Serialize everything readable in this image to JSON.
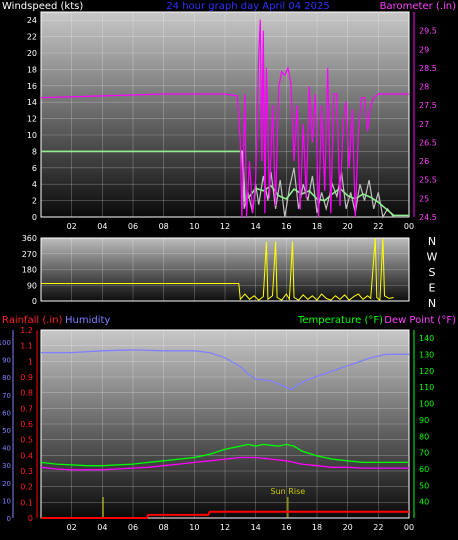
{
  "chart_data": [
    {
      "type": "line",
      "title": "24 hour graph day   April 04 2025",
      "ylabel": "Windspeed (kts)",
      "y2label": "Barometer (.in)",
      "x_ticks": [
        "02",
        "04",
        "06",
        "08",
        "10",
        "12",
        "14",
        "16",
        "18",
        "20",
        "22",
        "00"
      ],
      "ylim": [
        0,
        25
      ],
      "y_ticks": [
        0,
        2,
        4,
        6,
        8,
        10,
        12,
        14,
        16,
        18,
        20,
        22,
        24
      ],
      "y2lim": [
        24.5,
        30.0
      ],
      "y2_ticks": [
        "24.5",
        "25",
        "25.5",
        "26",
        "26.5",
        "27",
        "27.5",
        "28",
        "28.5",
        "29",
        "29.5"
      ],
      "colors": {
        "windspeed": "#c0c0c0",
        "wind_avg": "#90ee90",
        "barometer": "#ff00ff"
      },
      "series": [
        {
          "key": "windspeed",
          "color": "#c0c0c0",
          "points": [
            [
              0,
              8
            ],
            [
              13.1,
              8
            ],
            [
              13.25,
              1
            ],
            [
              13.5,
              3
            ],
            [
              13.8,
              0.5
            ],
            [
              14,
              4
            ],
            [
              14.2,
              1.5
            ],
            [
              14.5,
              5
            ],
            [
              14.8,
              2
            ],
            [
              15,
              5.5
            ],
            [
              15.3,
              1
            ],
            [
              15.6,
              4.5
            ],
            [
              15.9,
              0
            ],
            [
              16.2,
              3.5
            ],
            [
              16.5,
              6
            ],
            [
              16.8,
              1
            ],
            [
              17.1,
              4
            ],
            [
              17.4,
              2
            ],
            [
              17.7,
              5
            ],
            [
              18,
              0.5
            ],
            [
              18.3,
              3
            ],
            [
              18.6,
              1
            ],
            [
              19,
              4
            ],
            [
              19.3,
              2.5
            ],
            [
              19.6,
              5.5
            ],
            [
              19.9,
              1
            ],
            [
              20.2,
              3
            ],
            [
              20.5,
              0.5
            ],
            [
              20.8,
              4
            ],
            [
              21.1,
              2
            ],
            [
              21.4,
              4.5
            ],
            [
              21.7,
              1
            ],
            [
              22,
              3
            ],
            [
              22.3,
              0
            ],
            [
              22.6,
              1
            ],
            [
              23,
              0
            ],
            [
              24,
              0
            ]
          ]
        },
        {
          "key": "wind_avg",
          "color": "#90ee90",
          "points": [
            [
              0,
              8
            ],
            [
              13.15,
              8
            ],
            [
              13.3,
              2
            ],
            [
              13.6,
              2.5
            ],
            [
              14,
              3.5
            ],
            [
              14.5,
              3.2
            ],
            [
              15,
              3.8
            ],
            [
              15.5,
              2.6
            ],
            [
              16,
              2.2
            ],
            [
              16.5,
              3.4
            ],
            [
              17,
              2.8
            ],
            [
              17.5,
              3.2
            ],
            [
              18,
              2.2
            ],
            [
              18.5,
              2
            ],
            [
              19,
              2.8
            ],
            [
              19.5,
              3.5
            ],
            [
              20,
              2.6
            ],
            [
              20.5,
              2.2
            ],
            [
              21,
              2.8
            ],
            [
              21.5,
              2.4
            ],
            [
              22,
              1.8
            ],
            [
              22.5,
              1
            ],
            [
              23,
              0.2
            ],
            [
              24,
              0.2
            ]
          ]
        },
        {
          "key": "barometer",
          "color": "#ff00ff",
          "points": [
            [
              0,
              27.7
            ],
            [
              4,
              27.75
            ],
            [
              8,
              27.8
            ],
            [
              12,
              27.8
            ],
            [
              12.8,
              27.75
            ],
            [
              13.0,
              26.5
            ],
            [
              13.1,
              24.5
            ],
            [
              13.3,
              27.8
            ],
            [
              13.4,
              24.5
            ],
            [
              13.6,
              26.0
            ],
            [
              13.8,
              24.6
            ],
            [
              14.0,
              25.5
            ],
            [
              14.2,
              28.8
            ],
            [
              14.3,
              29.8
            ],
            [
              14.4,
              26.0
            ],
            [
              14.5,
              29.5
            ],
            [
              14.6,
              24.6
            ],
            [
              14.7,
              28.5
            ],
            [
              14.9,
              25.0
            ],
            [
              15.1,
              27.5
            ],
            [
              15.3,
              24.8
            ],
            [
              15.5,
              28.0
            ],
            [
              15.7,
              28.4
            ],
            [
              15.9,
              28.3
            ],
            [
              16.1,
              28.5
            ],
            [
              16.3,
              28.1
            ],
            [
              16.5,
              26.0
            ],
            [
              16.7,
              27.5
            ],
            [
              16.9,
              24.7
            ],
            [
              17.1,
              27.0
            ],
            [
              17.3,
              25.0
            ],
            [
              17.5,
              28.0
            ],
            [
              17.7,
              26.5
            ],
            [
              17.9,
              27.8
            ],
            [
              18.1,
              24.5
            ],
            [
              18.3,
              27.5
            ],
            [
              18.5,
              25.2
            ],
            [
              18.7,
              28.5
            ],
            [
              18.9,
              24.6
            ],
            [
              19.1,
              27.8
            ],
            [
              19.3,
              27.8
            ],
            [
              19.5,
              24.8
            ],
            [
              19.7,
              27.0
            ],
            [
              19.9,
              27.6
            ],
            [
              20.1,
              25.8
            ],
            [
              20.3,
              27.4
            ],
            [
              20.5,
              24.5
            ],
            [
              20.7,
              26.8
            ],
            [
              20.9,
              27.7
            ],
            [
              21.1,
              27.7
            ],
            [
              21.3,
              26.8
            ],
            [
              21.5,
              27.5
            ],
            [
              21.7,
              27.7
            ],
            [
              22,
              27.8
            ],
            [
              24,
              27.8
            ]
          ]
        }
      ]
    },
    {
      "type": "line",
      "ylabel": "",
      "x_ticks": [],
      "ylim": [
        0,
        360
      ],
      "y_ticks": [
        0,
        90,
        180,
        270,
        360
      ],
      "y2_ticks": [
        "N",
        "W",
        "S",
        "E",
        "N"
      ],
      "colors": {
        "direction": "#ffff00"
      },
      "series": [
        {
          "key": "direction",
          "color": "#ffff00",
          "points": [
            [
              0,
              100
            ],
            [
              12,
              100
            ],
            [
              12.9,
              100
            ],
            [
              13.0,
              10
            ],
            [
              13.3,
              40
            ],
            [
              13.6,
              10
            ],
            [
              13.9,
              30
            ],
            [
              14.2,
              5
            ],
            [
              14.5,
              25
            ],
            [
              14.7,
              340
            ],
            [
              14.8,
              10
            ],
            [
              15.1,
              30
            ],
            [
              15.3,
              340
            ],
            [
              15.4,
              20
            ],
            [
              15.7,
              5
            ],
            [
              16.0,
              40
            ],
            [
              16.2,
              10
            ],
            [
              16.4,
              340
            ],
            [
              16.5,
              20
            ],
            [
              16.8,
              5
            ],
            [
              17.1,
              35
            ],
            [
              17.4,
              10
            ],
            [
              17.7,
              30
            ],
            [
              18.0,
              5
            ],
            [
              18.3,
              40
            ],
            [
              18.6,
              15
            ],
            [
              18.9,
              5
            ],
            [
              19.2,
              30
            ],
            [
              19.5,
              10
            ],
            [
              19.8,
              35
            ],
            [
              20.1,
              5
            ],
            [
              20.4,
              25
            ],
            [
              20.7,
              40
            ],
            [
              21.0,
              10
            ],
            [
              21.3,
              30
            ],
            [
              21.5,
              15
            ],
            [
              21.8,
              360
            ],
            [
              21.9,
              20
            ],
            [
              22.1,
              5
            ],
            [
              22.3,
              360
            ],
            [
              22.4,
              30
            ],
            [
              22.7,
              15
            ],
            [
              23.0,
              20
            ]
          ]
        }
      ]
    },
    {
      "type": "line",
      "ylabel": "Rainfall (.in)",
      "ylabel_b": "Humidity",
      "y2label": "Temperature (°F)",
      "y2label_b": "Dew Point (°F)",
      "annotation": "Sun Rise",
      "x_ticks": [
        "02",
        "04",
        "06",
        "08",
        "10",
        "12",
        "14",
        "16",
        "18",
        "20",
        "22",
        "00"
      ],
      "ylim_rain": [
        0,
        1.2
      ],
      "rain_ticks": [
        "0",
        "0.1",
        "0.2",
        "0.3",
        "0.4",
        "0.5",
        "0.6",
        "0.7",
        "0.8",
        "0.9",
        "1",
        "1.1",
        "1.2"
      ],
      "humidity_ticks": [
        "0",
        "10",
        "20",
        "30",
        "40",
        "50",
        "60",
        "70",
        "80",
        "90",
        "100"
      ],
      "ylim_temp": [
        30,
        145
      ],
      "temp_ticks": [
        "40",
        "50",
        "60",
        "70",
        "80",
        "90",
        "100",
        "110",
        "120",
        "130",
        "140"
      ],
      "colors": {
        "humidity": "#8080ff",
        "temperature": "#00ff00",
        "dewpoint": "#ff00ff",
        "rainfall": "#ff0000",
        "sun": "#cccc00"
      },
      "series": [
        {
          "key": "humidity",
          "color": "#8080ff",
          "points": [
            [
              0,
              94
            ],
            [
              2,
              94
            ],
            [
              4,
              95
            ],
            [
              6,
              95.5
            ],
            [
              8,
              95
            ],
            [
              10,
              95
            ],
            [
              11,
              94
            ],
            [
              12,
              91
            ],
            [
              13,
              86
            ],
            [
              13.5,
              82
            ],
            [
              14,
              79
            ],
            [
              15,
              78
            ],
            [
              15.8,
              75
            ],
            [
              16.3,
              73
            ],
            [
              16.8,
              76
            ],
            [
              17.5,
              79
            ],
            [
              18.5,
              82
            ],
            [
              19.5,
              85
            ],
            [
              20.5,
              88
            ],
            [
              21.5,
              91
            ],
            [
              22.5,
              93
            ],
            [
              23.5,
              93
            ],
            [
              24,
              93
            ]
          ]
        },
        {
          "key": "temperature",
          "color": "#00ff00",
          "points": [
            [
              0,
              64
            ],
            [
              1,
              63
            ],
            [
              2,
              62.5
            ],
            [
              3,
              62
            ],
            [
              4,
              62
            ],
            [
              5,
              62.5
            ],
            [
              6,
              63
            ],
            [
              7,
              64
            ],
            [
              8,
              65
            ],
            [
              9,
              66
            ],
            [
              10,
              67
            ],
            [
              11,
              69
            ],
            [
              12,
              72
            ],
            [
              13,
              74
            ],
            [
              13.5,
              75
            ],
            [
              14,
              74
            ],
            [
              14.5,
              75
            ],
            [
              15,
              74.5
            ],
            [
              15.5,
              74
            ],
            [
              16,
              75
            ],
            [
              16.5,
              74
            ],
            [
              17,
              71
            ],
            [
              18,
              68
            ],
            [
              19,
              66
            ],
            [
              20,
              65
            ],
            [
              21,
              64
            ],
            [
              22,
              64
            ],
            [
              23,
              64
            ],
            [
              24,
              64
            ]
          ]
        },
        {
          "key": "dewpoint",
          "color": "#ff00ff",
          "points": [
            [
              0,
              61
            ],
            [
              1,
              60
            ],
            [
              2,
              59.5
            ],
            [
              3,
              59.5
            ],
            [
              4,
              59.5
            ],
            [
              5,
              60
            ],
            [
              6,
              60.5
            ],
            [
              7,
              61
            ],
            [
              8,
              62
            ],
            [
              9,
              63
            ],
            [
              10,
              64
            ],
            [
              11,
              65
            ],
            [
              12,
              66
            ],
            [
              13,
              67
            ],
            [
              14,
              67
            ],
            [
              15,
              66
            ],
            [
              16,
              65
            ],
            [
              17,
              63
            ],
            [
              18,
              62
            ],
            [
              19,
              61
            ],
            [
              20,
              61
            ],
            [
              21,
              60.5
            ],
            [
              22,
              60.5
            ],
            [
              23,
              60.5
            ],
            [
              24,
              60.5
            ]
          ]
        },
        {
          "key": "rainfall",
          "color": "#ff0000",
          "points": [
            [
              0,
              0
            ],
            [
              6.9,
              0
            ],
            [
              7,
              0.02
            ],
            [
              10.9,
              0.02
            ],
            [
              11,
              0.04
            ],
            [
              24,
              0.04
            ]
          ]
        }
      ],
      "sun_rise_hour": 16.1,
      "marker_hour": 4.05
    }
  ]
}
